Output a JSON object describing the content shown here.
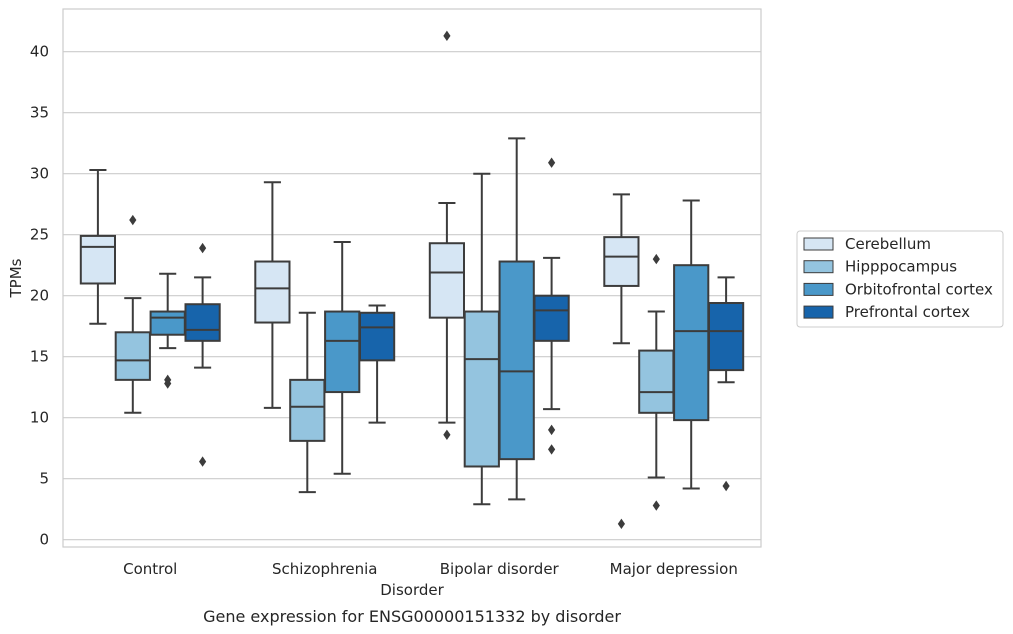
{
  "chart_data": {
    "type": "box",
    "caption": "Gene expression for ENSG00000151332 by disorder",
    "xlabel": "Disorder",
    "ylabel": "TPMs",
    "ylim": [
      -0.6,
      43.5
    ],
    "yticks": [
      0,
      5,
      10,
      15,
      20,
      25,
      30,
      35,
      40
    ],
    "grid": "horizontal",
    "legend_position": "right",
    "categories": [
      "Control",
      "Schizophrenia",
      "Bipolar disorder",
      "Major depression"
    ],
    "series": [
      {
        "name": "Cerebellum",
        "color": "#d6e6f4",
        "boxes": [
          {
            "whislo": 17.7,
            "q1": 21.0,
            "med": 24.0,
            "q3": 24.9,
            "whishi": 30.3,
            "fliers": []
          },
          {
            "whislo": 10.8,
            "q1": 17.8,
            "med": 20.6,
            "q3": 22.8,
            "whishi": 29.3,
            "fliers": []
          },
          {
            "whislo": 9.6,
            "q1": 18.2,
            "med": 21.9,
            "q3": 24.3,
            "whishi": 27.6,
            "fliers": [
              41.3,
              8.6
            ]
          },
          {
            "whislo": 16.1,
            "q1": 20.8,
            "med": 23.2,
            "q3": 24.8,
            "whishi": 28.3,
            "fliers": [
              1.3
            ]
          }
        ]
      },
      {
        "name": "Hipppocampus",
        "color": "#94c4df",
        "boxes": [
          {
            "whislo": 10.4,
            "q1": 13.1,
            "med": 14.7,
            "q3": 17.0,
            "whishi": 19.8,
            "fliers": [
              26.2
            ]
          },
          {
            "whislo": 3.9,
            "q1": 8.1,
            "med": 10.9,
            "q3": 13.1,
            "whishi": 18.6,
            "fliers": []
          },
          {
            "whislo": 2.9,
            "q1": 6.0,
            "med": 14.8,
            "q3": 18.7,
            "whishi": 30.0,
            "fliers": []
          },
          {
            "whislo": 5.1,
            "q1": 10.4,
            "med": 12.1,
            "q3": 15.5,
            "whishi": 18.7,
            "fliers": [
              23.0,
              2.8
            ]
          }
        ]
      },
      {
        "name": "Orbitofrontal cortex",
        "color": "#4a98c9",
        "boxes": [
          {
            "whislo": 15.7,
            "q1": 16.8,
            "med": 18.2,
            "q3": 18.7,
            "whishi": 21.8,
            "fliers": [
              13.1,
              12.8
            ]
          },
          {
            "whislo": 5.4,
            "q1": 12.1,
            "med": 16.3,
            "q3": 18.7,
            "whishi": 24.4,
            "fliers": []
          },
          {
            "whislo": 3.3,
            "q1": 6.6,
            "med": 13.8,
            "q3": 22.8,
            "whishi": 32.9,
            "fliers": []
          },
          {
            "whislo": 4.2,
            "q1": 9.8,
            "med": 17.1,
            "q3": 22.5,
            "whishi": 27.8,
            "fliers": []
          }
        ]
      },
      {
        "name": "Prefrontal cortex",
        "color": "#1764ab",
        "boxes": [
          {
            "whislo": 14.1,
            "q1": 16.3,
            "med": 17.2,
            "q3": 19.3,
            "whishi": 21.5,
            "fliers": [
              23.9,
              6.4
            ]
          },
          {
            "whislo": 9.6,
            "q1": 14.7,
            "med": 17.4,
            "q3": 18.6,
            "whishi": 19.2,
            "fliers": []
          },
          {
            "whislo": 10.7,
            "q1": 16.3,
            "med": 18.8,
            "q3": 20.0,
            "whishi": 23.1,
            "fliers": [
              30.9,
              9.0,
              7.4
            ]
          },
          {
            "whislo": 12.9,
            "q1": 13.9,
            "med": 17.1,
            "q3": 19.4,
            "whishi": 21.5,
            "fliers": [
              4.4
            ]
          }
        ]
      }
    ]
  }
}
